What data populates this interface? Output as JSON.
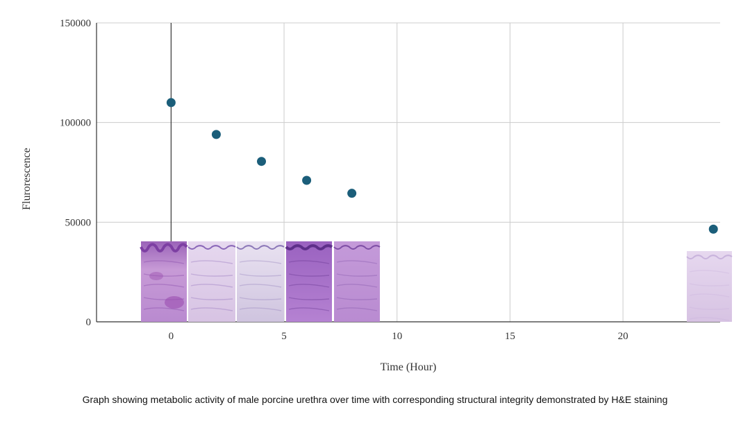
{
  "chart_data": {
    "type": "scatter",
    "title": "",
    "xlabel": "Time (Hour)",
    "ylabel": "Flurorescence",
    "xlim": [
      -3.3,
      24.3
    ],
    "ylim": [
      0,
      150000
    ],
    "x_ticks": [
      0,
      5,
      10,
      15,
      20
    ],
    "y_ticks": [
      0,
      50000,
      100000,
      150000
    ],
    "grid": true,
    "marker_color": "#1b5e7a",
    "series": [
      {
        "points": [
          {
            "x": 0,
            "y": 110000
          },
          {
            "x": 2,
            "y": 94000
          },
          {
            "x": 4,
            "y": 80500
          },
          {
            "x": 6,
            "y": 71000
          },
          {
            "x": 8,
            "y": 64500
          },
          {
            "x": 24,
            "y": 46500
          }
        ]
      }
    ],
    "histology_insets": [
      {
        "time": 0,
        "stain": "H&E"
      },
      {
        "time": 2,
        "stain": "H&E"
      },
      {
        "time": 4,
        "stain": "H&E"
      },
      {
        "time": 6,
        "stain": "H&E"
      },
      {
        "time": 8,
        "stain": "H&E"
      },
      {
        "time": 24,
        "stain": "H&E"
      }
    ]
  },
  "caption": "Graph showing metabolic activity of male porcine urethra over time with corresponding structural integrity demonstrated by H&E staining"
}
